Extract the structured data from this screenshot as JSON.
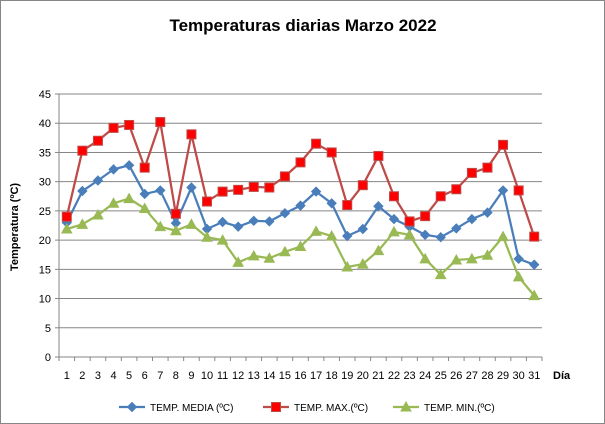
{
  "chart_data": {
    "type": "line",
    "title": "Temperaturas diarias Marzo 2022",
    "xlabel": "Día",
    "ylabel": "Temperatura (ºC)",
    "ylim": [
      0,
      45
    ],
    "yticks": [
      0,
      5,
      10,
      15,
      20,
      25,
      30,
      35,
      40,
      45
    ],
    "grid": true,
    "legend_position": "bottom",
    "categories": [
      "1",
      "2",
      "3",
      "4",
      "5",
      "6",
      "7",
      "8",
      "9",
      "10",
      "11",
      "12",
      "13",
      "14",
      "15",
      "16",
      "17",
      "18",
      "19",
      "20",
      "21",
      "22",
      "23",
      "24",
      "25",
      "26",
      "27",
      "28",
      "29",
      "30",
      "31"
    ],
    "series": [
      {
        "name": "TEMP. MEDIA (ºC)",
        "color": "#4a7ebb",
        "marker": "diamond",
        "values": [
          23.0,
          28.4,
          30.2,
          32.1,
          32.8,
          27.9,
          28.5,
          22.9,
          29.0,
          21.9,
          23.1,
          22.3,
          23.3,
          23.2,
          24.6,
          25.9,
          28.3,
          26.3,
          20.7,
          21.9,
          25.8,
          23.6,
          22.3,
          20.9,
          20.5,
          22.0,
          23.6,
          24.7,
          28.5,
          16.8,
          15.8
        ]
      },
      {
        "name": "TEMP. MAX.(ºC)",
        "color": "#be4b48",
        "marker": "square",
        "values": [
          24.0,
          35.3,
          37.0,
          39.2,
          39.7,
          32.4,
          40.2,
          24.5,
          38.1,
          26.6,
          28.3,
          28.6,
          29.1,
          29.0,
          30.9,
          33.3,
          36.5,
          35.0,
          26.0,
          29.4,
          34.4,
          27.5,
          23.2,
          24.1,
          27.5,
          28.7,
          31.5,
          32.4,
          36.3,
          28.5,
          20.6
        ]
      },
      {
        "name": "TEMP. MIN.(ºC)",
        "color": "#98b954",
        "marker": "triangle",
        "values": [
          21.9,
          22.7,
          24.3,
          26.3,
          27.1,
          25.4,
          22.3,
          21.6,
          22.7,
          20.5,
          20.0,
          16.2,
          17.3,
          16.9,
          18.0,
          18.9,
          21.5,
          20.7,
          15.4,
          15.9,
          18.2,
          21.4,
          20.9,
          16.8,
          14.1,
          16.6,
          16.8,
          17.4,
          20.6,
          13.7,
          10.5
        ]
      }
    ]
  }
}
